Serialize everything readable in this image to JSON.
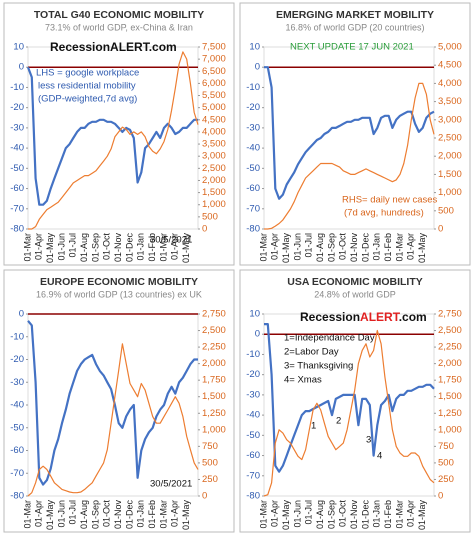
{
  "chart_data": [
    {
      "type": "line",
      "title": "TOTAL G40 ECONOMIC MOBILITY",
      "subtitle": "73.1% of world GDP, ex-China & Iran",
      "annotations": [
        "RecessionALERT.com",
        "LHS = google workplace",
        "less residential mobility",
        "(GDP-weighted,7d avg)",
        "30/5/2021"
      ],
      "categories": [
        "01-Mar",
        null,
        null,
        "01-Apr",
        null,
        null,
        "01-May",
        null,
        null,
        "01-Jun",
        null,
        null,
        "01-Jul",
        null,
        null,
        "01-Aug",
        null,
        null,
        "01-Sep",
        null,
        null,
        "01-Oct",
        null,
        null,
        "01-Nov",
        null,
        null,
        "01-Dec",
        null,
        null,
        "01-Jan",
        null,
        null,
        "01-Feb",
        null,
        null,
        "01-Mar",
        null,
        null,
        "01-Apr",
        null,
        null,
        "01-May",
        null,
        null,
        null
      ],
      "series": [
        {
          "color": "#4472c4",
          "values": [
            0,
            -5,
            -55,
            -68,
            -68,
            -66,
            -60,
            -55,
            -50,
            -45,
            -40,
            -38,
            -35,
            -32,
            -30,
            -30,
            -28,
            -27,
            -27,
            -26,
            -26,
            -27,
            -27,
            -28,
            -30,
            -32,
            -30,
            -31,
            -35,
            -57,
            -52,
            -40,
            -38,
            -35,
            -32,
            -35,
            -30,
            -28,
            -30,
            -33,
            -32,
            -30,
            -30,
            -28,
            -26,
            -26
          ]
        },
        {
          "color": "#ed7d31",
          "axis": "y2",
          "values": [
            0,
            0,
            100,
            400,
            600,
            800,
            900,
            1000,
            1100,
            1300,
            1500,
            1700,
            1900,
            2000,
            2100,
            2200,
            2200,
            2300,
            2400,
            2600,
            2800,
            3000,
            3300,
            3800,
            4000,
            4200,
            4100,
            3900,
            4000,
            3900,
            4000,
            3800,
            3400,
            3200,
            3100,
            3300,
            3600,
            4100,
            4900,
            5800,
            6800,
            7300,
            7000,
            6000,
            4800,
            4300
          ]
        }
      ],
      "ylim": [
        -80,
        10
      ],
      "yticks": [
        10,
        0,
        -10,
        -20,
        -30,
        -40,
        -50,
        -60,
        -70,
        -80
      ],
      "y2lim": [
        0,
        7500
      ],
      "y2ticks": [
        {
          "value": 7500,
          "label": "7,500"
        },
        {
          "value": 7000,
          "label": "7,000"
        },
        {
          "value": 6500,
          "label": "6,500"
        },
        {
          "value": 6000,
          "label": "6,000"
        },
        {
          "value": 5500,
          "label": "5,500"
        },
        {
          "value": 5000,
          "label": "5,000"
        },
        {
          "value": 4500,
          "label": "4,500"
        },
        {
          "value": 4000,
          "label": "4,000"
        },
        {
          "value": 3500,
          "label": "3,500"
        },
        {
          "value": 3000,
          "label": "3,000"
        },
        {
          "value": 2500,
          "label": "2,500"
        },
        {
          "value": 2000,
          "label": "2,000"
        },
        {
          "value": 1500,
          "label": "1,500"
        },
        {
          "value": 1000,
          "label": "1,000"
        },
        500,
        0
      ],
      "grid": false
    },
    {
      "type": "line",
      "title": "EMERGING MARKET MOBILITY",
      "subtitle": "16.8% of world GDP (20 countries)",
      "annotations": [
        "NEXT UPDATE 17 JUN 2021",
        "RHS= daily new cases",
        "(7d avg, hundreds)"
      ],
      "categories": [
        "01-Mar",
        null,
        null,
        "01-Apr",
        null,
        null,
        "01-May",
        null,
        null,
        "01-Jun",
        null,
        null,
        "01-Jul",
        null,
        null,
        "01-Aug",
        null,
        null,
        "01-Sep",
        null,
        null,
        "01-Oct",
        null,
        null,
        "01-Nov",
        null,
        null,
        "01-Dec",
        null,
        null,
        "01-Jan",
        null,
        null,
        "01-Feb",
        null,
        null,
        "01-Mar",
        null,
        null,
        "01-Apr",
        null,
        null,
        "01-May",
        null,
        null,
        null
      ],
      "series": [
        {
          "color": "#4472c4",
          "values": [
            0,
            0,
            -10,
            -60,
            -65,
            -63,
            -58,
            -55,
            -52,
            -48,
            -45,
            -42,
            -40,
            -38,
            -36,
            -35,
            -33,
            -32,
            -30,
            -30,
            -29,
            -28,
            -27,
            -27,
            -26,
            -26,
            -25,
            -25,
            -25,
            -33,
            -30,
            -25,
            -24,
            -24,
            -30,
            -26,
            -24,
            -23,
            -22,
            -22,
            -28,
            -32,
            -30,
            -25,
            -23,
            -22
          ]
        },
        {
          "color": "#ed7d31",
          "axis": "y2",
          "values": [
            0,
            0,
            20,
            80,
            150,
            250,
            400,
            550,
            750,
            1000,
            1200,
            1400,
            1500,
            1600,
            1700,
            1800,
            1800,
            1800,
            1800,
            1750,
            1700,
            1600,
            1550,
            1500,
            1500,
            1550,
            1600,
            1650,
            1600,
            1550,
            1500,
            1450,
            1400,
            1350,
            1300,
            1350,
            1500,
            1800,
            2300,
            3000,
            3600,
            4000,
            4000,
            3700,
            3000,
            2600
          ]
        }
      ],
      "ylim": [
        -80,
        10
      ],
      "yticks": [
        10,
        0,
        -10,
        -20,
        -30,
        -40,
        -50,
        -60,
        -70,
        -80
      ],
      "y2lim": [
        0,
        5000
      ],
      "y2ticks": [
        {
          "value": 5000,
          "label": "5,000"
        },
        {
          "value": 4500,
          "label": "4,500"
        },
        {
          "value": 4000,
          "label": "4,000"
        },
        {
          "value": 3500,
          "label": "3,500"
        },
        {
          "value": 3000,
          "label": "3,000"
        },
        {
          "value": 2500,
          "label": "2,500"
        },
        {
          "value": 2000,
          "label": "2,000"
        },
        {
          "value": 1500,
          "label": "1,500"
        },
        {
          "value": 1000,
          "label": "1,000"
        },
        500,
        0
      ],
      "grid": false
    },
    {
      "type": "line",
      "title": "EUROPE ECONOMIC MOBILITY",
      "subtitle": "16.9% of world GDP (13 countries) ex UK",
      "annotations": [
        "30/5/2021"
      ],
      "categories": [
        "01-Mar",
        null,
        null,
        "01-Apr",
        null,
        null,
        "01-May",
        null,
        null,
        "01-Jun",
        null,
        null,
        "01-Jul",
        null,
        null,
        "01-Aug",
        null,
        null,
        "01-Sep",
        null,
        null,
        "01-Oct",
        null,
        null,
        "01-Nov",
        null,
        null,
        "01-Dec",
        null,
        null,
        "01-Jan",
        null,
        null,
        "01-Feb",
        null,
        null,
        "01-Mar",
        null,
        null,
        "01-Apr",
        null,
        null,
        "01-May",
        null,
        null,
        null
      ],
      "series": [
        {
          "color": "#4472c4",
          "values": [
            -3,
            -5,
            -30,
            -72,
            -75,
            -73,
            -68,
            -60,
            -55,
            -48,
            -42,
            -35,
            -30,
            -25,
            -22,
            -20,
            -19,
            -18,
            -22,
            -25,
            -27,
            -30,
            -33,
            -40,
            -48,
            -50,
            -45,
            -42,
            -40,
            -72,
            -60,
            -55,
            -52,
            -50,
            -45,
            -42,
            -40,
            -35,
            -32,
            -35,
            -30,
            -28,
            -25,
            -22,
            -20,
            -20
          ]
        },
        {
          "color": "#ed7d31",
          "axis": "y2",
          "values": [
            0,
            50,
            200,
            400,
            450,
            400,
            300,
            200,
            150,
            100,
            80,
            60,
            50,
            50,
            60,
            100,
            150,
            200,
            300,
            400,
            500,
            700,
            1100,
            1500,
            1900,
            2300,
            2000,
            1700,
            1600,
            1500,
            1700,
            1600,
            1400,
            1200,
            1100,
            1100,
            1200,
            1300,
            1400,
            1500,
            1400,
            1200,
            900,
            700,
            500,
            400
          ]
        }
      ],
      "ylim": [
        -80,
        0
      ],
      "yticks": [
        0,
        -10,
        -20,
        -30,
        -40,
        -50,
        -60,
        -70,
        -80
      ],
      "y2lim": [
        0,
        2750
      ],
      "y2ticks": [
        {
          "value": 2750,
          "label": "2,750"
        },
        {
          "value": 2500,
          "label": "2,500"
        },
        {
          "value": 2250,
          "label": "2,250"
        },
        {
          "value": 2000,
          "label": "2,000"
        },
        {
          "value": 1750,
          "label": "1,750"
        },
        {
          "value": 1500,
          "label": "1,500"
        },
        {
          "value": 1250,
          "label": "1,250"
        },
        {
          "value": 1000,
          "label": "1,000"
        },
        750,
        500,
        250,
        0
      ],
      "grid": false
    },
    {
      "type": "line",
      "title": "USA ECONOMIC MOBILITY",
      "subtitle": "24.8% of world GDP",
      "logo": [
        "Recession",
        "ALERT",
        ".com"
      ],
      "annotations": [
        "1=Independance Day",
        "2=Labor Day",
        "3= Thanksgiving",
        "4= Xmas",
        "1",
        "2",
        "3",
        "4"
      ],
      "categories": [
        "01-Mar",
        null,
        null,
        "01-Apr",
        null,
        null,
        "01-May",
        null,
        null,
        "01-Jun",
        null,
        null,
        "01-Jul",
        null,
        null,
        "01-Aug",
        null,
        null,
        "01-Sep",
        null,
        null,
        "01-Oct",
        null,
        null,
        "01-Nov",
        null,
        null,
        "01-Dec",
        null,
        null,
        "01-Jan",
        null,
        null,
        "01-Feb",
        null,
        null,
        "01-Mar",
        null,
        null,
        "01-Apr",
        null,
        null,
        "01-May",
        null,
        null,
        null
      ],
      "series": [
        {
          "color": "#4472c4",
          "values": [
            5,
            5,
            -20,
            -65,
            -68,
            -65,
            -60,
            -55,
            -50,
            -45,
            -40,
            -38,
            -38,
            -37,
            -36,
            -35,
            -34,
            -33,
            -40,
            -32,
            -31,
            -30,
            -30,
            -30,
            -30,
            -45,
            -32,
            -32,
            -35,
            -60,
            -45,
            -35,
            -33,
            -30,
            -38,
            -32,
            -30,
            -30,
            -28,
            -28,
            -27,
            -26,
            -26,
            -25,
            -25,
            -27
          ]
        },
        {
          "color": "#ed7d31",
          "axis": "y2",
          "values": [
            0,
            20,
            200,
            800,
            1000,
            950,
            850,
            800,
            700,
            600,
            550,
            700,
            1000,
            1300,
            1400,
            1300,
            1100,
            900,
            800,
            700,
            750,
            800,
            1000,
            1300,
            1600,
            2000,
            2200,
            2300,
            2100,
            2200,
            2500,
            2300,
            1800,
            1400,
            1000,
            750,
            650,
            600,
            600,
            650,
            650,
            600,
            450,
            350,
            250,
            200
          ]
        }
      ],
      "ylim": [
        -80,
        10
      ],
      "yticks": [
        10,
        0,
        -10,
        -20,
        -30,
        -40,
        -50,
        -60,
        -70,
        -80
      ],
      "y2lim": [
        0,
        2750
      ],
      "y2ticks": [
        {
          "value": 2750,
          "label": "2,750"
        },
        {
          "value": 2500,
          "label": "2,500"
        },
        {
          "value": 2250,
          "label": "2,250"
        },
        {
          "value": 2000,
          "label": "2,000"
        },
        {
          "value": 1750,
          "label": "1,750"
        },
        {
          "value": 1500,
          "label": "1,500"
        },
        {
          "value": 1250,
          "label": "1,250"
        },
        {
          "value": 1000,
          "label": "1,000"
        },
        750,
        500,
        250,
        0
      ],
      "grid": false
    }
  ]
}
